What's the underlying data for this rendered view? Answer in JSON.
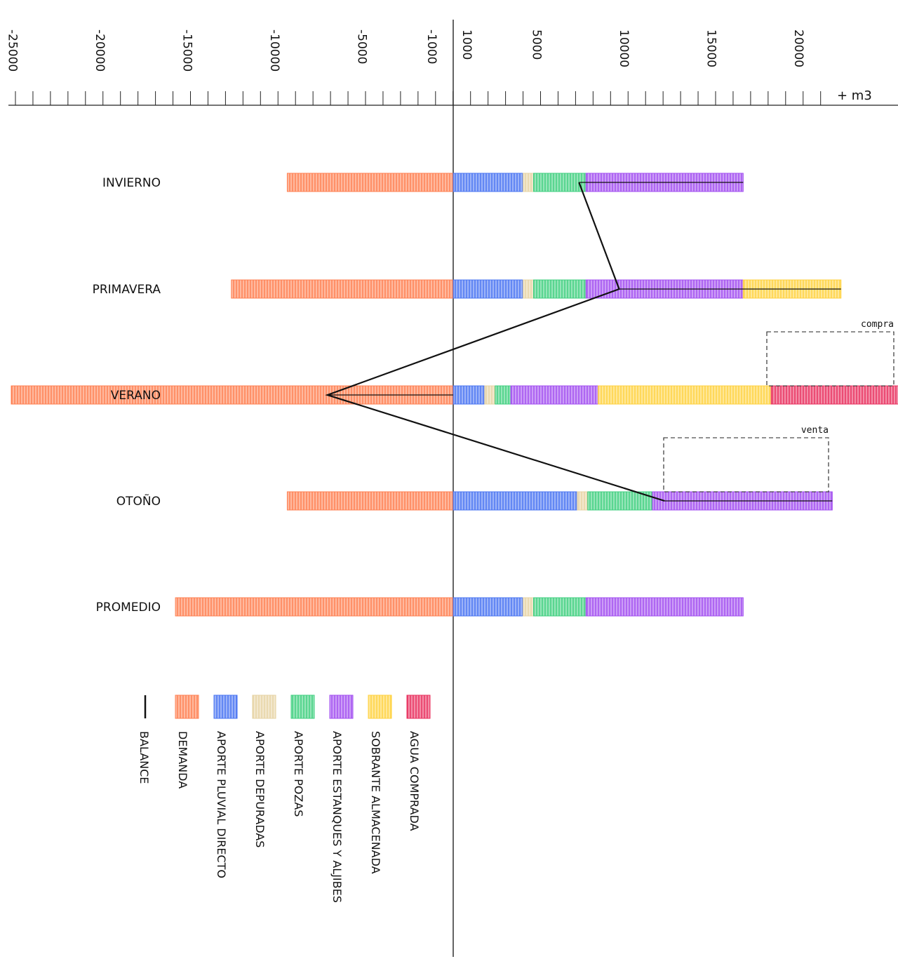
{
  "chart_data": {
    "type": "bar",
    "orientation": "horizontal",
    "stacked": true,
    "unit_label": "+ m3",
    "x_ticks": [
      -25000,
      -20000,
      -15000,
      -10000,
      -5000,
      -1000,
      1000,
      5000,
      10000,
      15000,
      20000
    ],
    "xlim": [
      -25000,
      25000
    ],
    "categories": [
      "INVIERNO",
      "PRIMAVERA",
      "VERANO",
      "OTOÑO",
      "PROMEDIO"
    ],
    "series": [
      {
        "name": "DEMANDA",
        "color": "#ff7f50",
        "values": [
          -9500,
          -12700,
          -25300,
          -9500,
          -15900
        ]
      },
      {
        "name": "APORTE PLUVIAL DIRECTO",
        "color": "#4a74f2",
        "values": [
          4000,
          4000,
          1800,
          7100,
          4000
        ]
      },
      {
        "name": "APORTE DEPURADAS",
        "color": "#e6d3a3",
        "values": [
          600,
          600,
          600,
          600,
          600
        ]
      },
      {
        "name": "APORTE POZAS",
        "color": "#3fcf7f",
        "values": [
          3000,
          3000,
          900,
          3700,
          3000
        ]
      },
      {
        "name": "APORTE ESTANQUES Y ALJIBES",
        "color": "#a24ef0",
        "values": [
          9000,
          9000,
          5000,
          10300,
          9000
        ]
      },
      {
        "name": "SOBRANTE ALMACENADA",
        "color": "#ffd23f",
        "values": [
          0,
          5600,
          9900,
          0,
          0
        ]
      },
      {
        "name": "AGUA COMPRADA",
        "color": "#e8305e",
        "values": [
          0,
          0,
          7300,
          0,
          0
        ]
      }
    ],
    "balance": {
      "name": "BALANCE",
      "values": [
        7200,
        9500,
        -7200,
        12100,
        null
      ]
    },
    "annotations": [
      {
        "text": "compra",
        "category": "VERANO"
      },
      {
        "text": "venta",
        "category": "OTOÑO"
      }
    ],
    "grid": false,
    "legend_position": "bottom-left"
  }
}
